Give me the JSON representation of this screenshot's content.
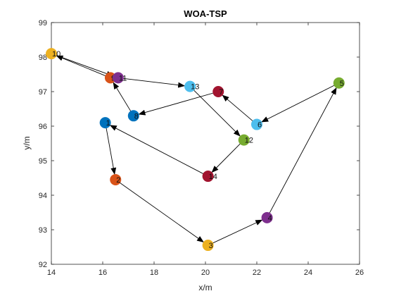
{
  "chart_data": {
    "type": "scatter",
    "title": "WOA-TSP",
    "xlabel": "x/m",
    "ylabel": "y/m",
    "xlim": [
      14,
      26
    ],
    "ylim": [
      92,
      99
    ],
    "xticks": [
      14,
      16,
      18,
      20,
      22,
      24,
      26
    ],
    "yticks": [
      92,
      93,
      94,
      95,
      96,
      97,
      98,
      99
    ],
    "grid": false,
    "points": [
      {
        "label": "1",
        "x": 16.1,
        "y": 96.1,
        "color": "#0072BD"
      },
      {
        "label": "2",
        "x": 16.5,
        "y": 94.45,
        "color": "#D95319"
      },
      {
        "label": "3",
        "x": 20.1,
        "y": 92.55,
        "color": "#EDB120"
      },
      {
        "label": "4",
        "x": 22.4,
        "y": 93.35,
        "color": "#7E2F8E"
      },
      {
        "label": "5",
        "x": 25.2,
        "y": 97.25,
        "color": "#77AC30"
      },
      {
        "label": "6",
        "x": 22.0,
        "y": 96.05,
        "color": "#4DBEEE"
      },
      {
        "label": "7",
        "x": 20.5,
        "y": 97.0,
        "color": "#A2142F"
      },
      {
        "label": "8",
        "x": 17.2,
        "y": 96.3,
        "color": "#0072BD"
      },
      {
        "label": "9",
        "x": 16.3,
        "y": 97.4,
        "color": "#D95319"
      },
      {
        "label": "10",
        "x": 14.0,
        "y": 98.1,
        "color": "#EDB120"
      },
      {
        "label": "11",
        "x": 16.6,
        "y": 97.4,
        "color": "#7E2F8E"
      },
      {
        "label": "12",
        "x": 21.5,
        "y": 95.6,
        "color": "#77AC30"
      },
      {
        "label": "13",
        "x": 19.4,
        "y": 97.15,
        "color": "#4DBEEE"
      },
      {
        "label": "14",
        "x": 20.1,
        "y": 94.55,
        "color": "#A2142F"
      }
    ],
    "route": [
      "1",
      "2",
      "3",
      "4",
      "5",
      "6",
      "7",
      "8",
      "9",
      "10",
      "11",
      "13",
      "12",
      "14",
      "1"
    ]
  }
}
